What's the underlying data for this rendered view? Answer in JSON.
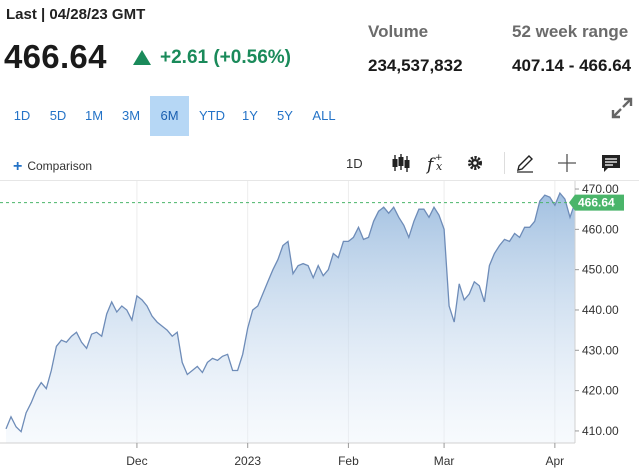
{
  "header": {
    "last_label": "Last | 04/28/23 GMT",
    "price": "466.64",
    "change": "+2.61 (+0.56%)",
    "volume_label": "Volume",
    "volume_value": "234,537,832",
    "range_label": "52 week range",
    "range_value": "407.14 - 466.64"
  },
  "colors": {
    "up": "#1a8a5a",
    "accent": "#2473c7",
    "line": "#6e8cb8",
    "badge": "#4ab56a"
  },
  "range_buttons": [
    "1D",
    "5D",
    "1M",
    "3M",
    "6M",
    "YTD",
    "1Y",
    "5Y",
    "ALL"
  ],
  "active_range": "6M",
  "toolbar": {
    "comparison_label": "Comparison",
    "interval_label": "1D",
    "icons": [
      "candlestick-icon",
      "function-icon",
      "gear-icon",
      "pencil-icon",
      "crosshair-icon",
      "news-icon"
    ]
  },
  "chart_data": {
    "type": "area",
    "last_price_label": "466.64",
    "last_price": 466.64,
    "ylim": [
      408,
      471
    ],
    "yticks": [
      470,
      460,
      450,
      440,
      430,
      420,
      410
    ],
    "ytick_labels": [
      "470.00",
      "460.00",
      "450.00",
      "440.00",
      "430.00",
      "420.00",
      "410.00"
    ],
    "xticks": [
      {
        "label": "Dec",
        "index": 26
      },
      {
        "label": "2023",
        "index": 48
      },
      {
        "label": "Feb",
        "index": 68
      },
      {
        "label": "Mar",
        "index": 87
      },
      {
        "label": "Apr",
        "index": 109
      }
    ],
    "series": [
      {
        "values": [
          410.5,
          413.5,
          411,
          409.8,
          414.5,
          417,
          420,
          422,
          420.5,
          425,
          431,
          432.5,
          432,
          433.5,
          434.5,
          432,
          430.5,
          434,
          434.5,
          433.5,
          439,
          442,
          439.5,
          441,
          440,
          437.5,
          443.5,
          442.5,
          441,
          438.5,
          437,
          436,
          435,
          433.5,
          434.5,
          427,
          424,
          425,
          426,
          424.5,
          427,
          428,
          427.5,
          428.5,
          429,
          425,
          425,
          429,
          435.5,
          440,
          441,
          444,
          447,
          450,
          452.5,
          456,
          457,
          449,
          451,
          451.5,
          451,
          448,
          451,
          448.5,
          450,
          454,
          453,
          457,
          457,
          458,
          460.5,
          457.5,
          458,
          462,
          464.5,
          465.5,
          464,
          465.5,
          463,
          461,
          458,
          462,
          465,
          465,
          463,
          465.5,
          463.5,
          460,
          441,
          437,
          446.5,
          442.5,
          444,
          447,
          446,
          442,
          451,
          454,
          456,
          457.5,
          457,
          459,
          458,
          460.5,
          460.5,
          462,
          467,
          468.5,
          468,
          466,
          469,
          467.5,
          463,
          466.64
        ]
      }
    ]
  }
}
